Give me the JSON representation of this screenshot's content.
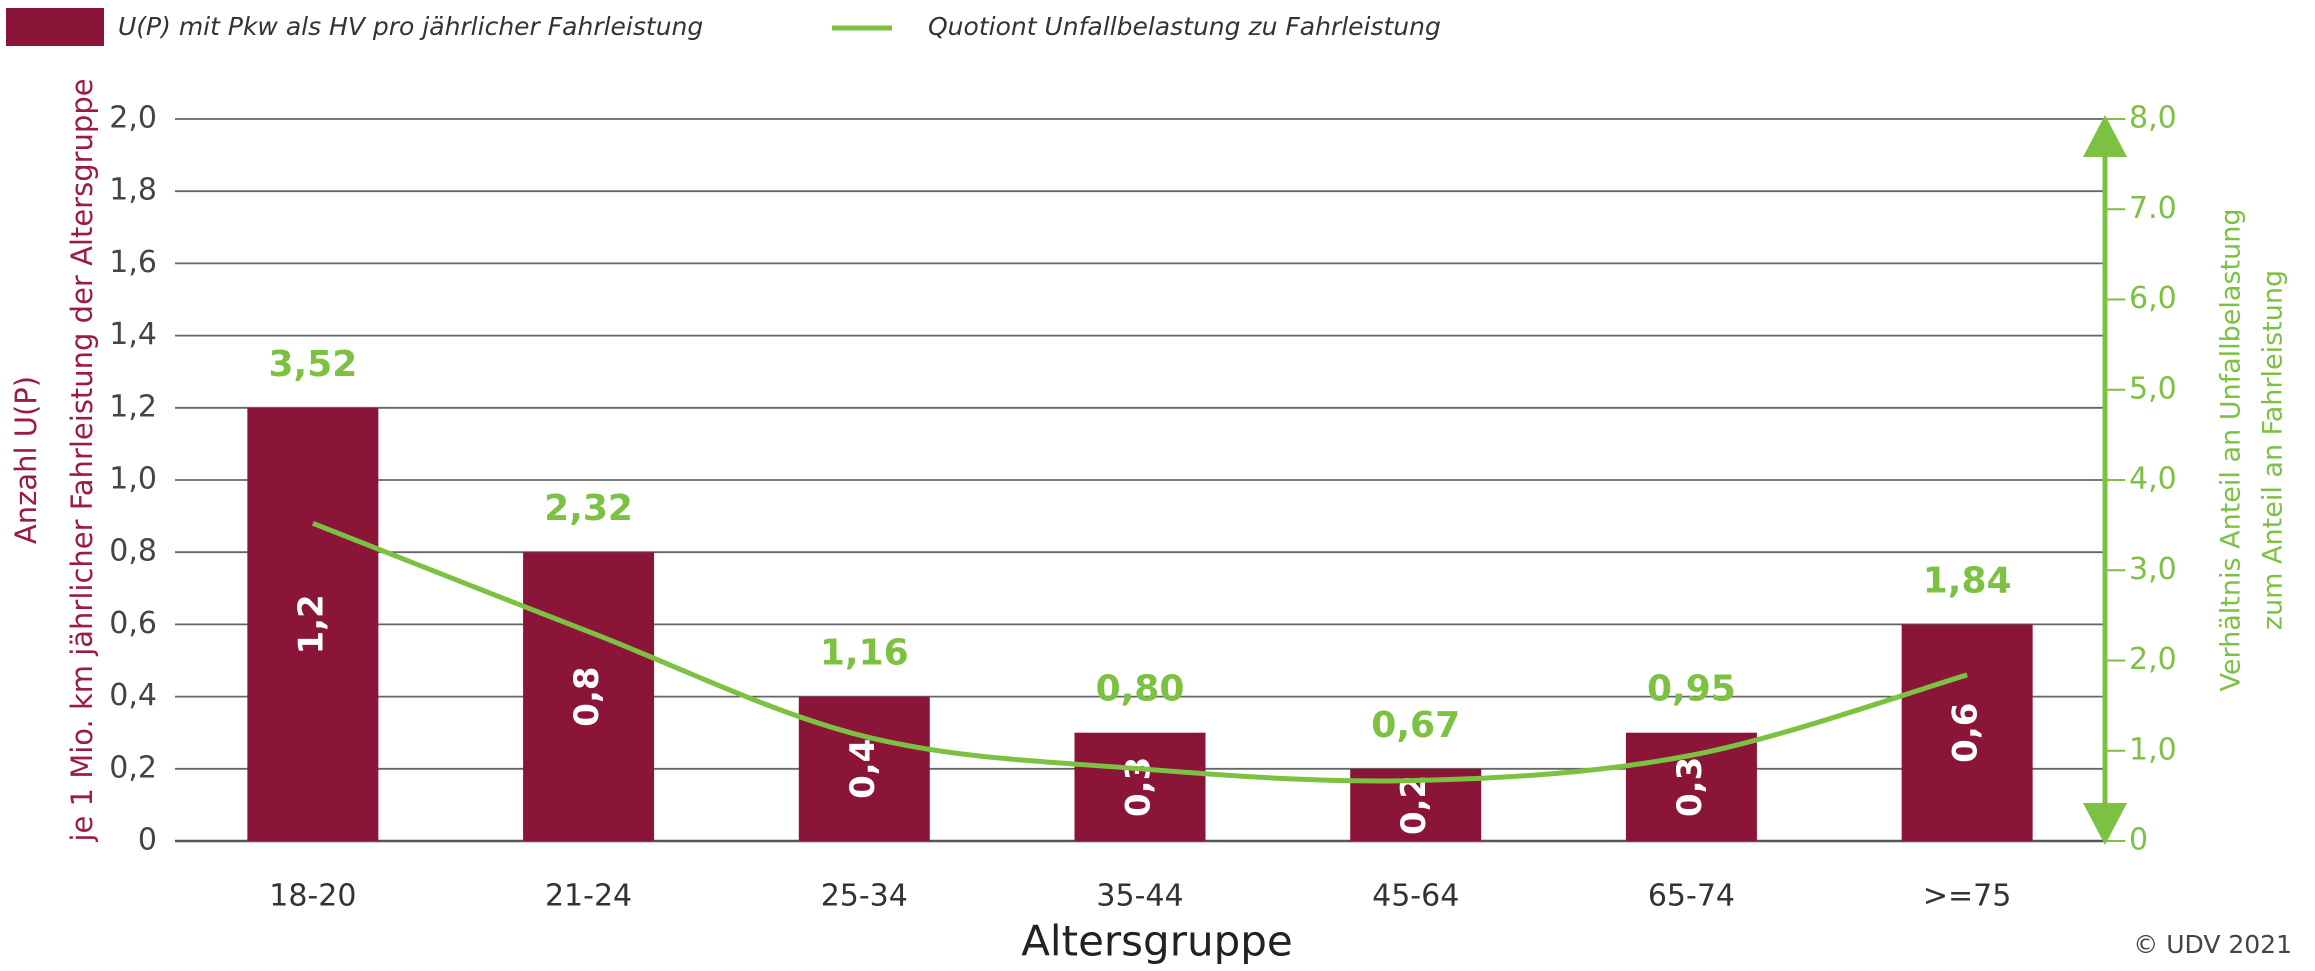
{
  "chart_data": {
    "type": "bar",
    "categories": [
      "18-20",
      "21-24",
      "25-34",
      "35-44",
      "45-64",
      "65-74",
      ">=75"
    ],
    "series": [
      {
        "name": "U(P) mit Pkw als HV pro jährlicher Fahrleistung",
        "type": "bar",
        "color": "#8a1538",
        "values": [
          1.2,
          0.8,
          0.4,
          0.3,
          0.2,
          0.3,
          0.6
        ],
        "value_labels": [
          "1,2",
          "0,8",
          "0,4",
          "0,3",
          "0,2",
          "0,3",
          "0,6"
        ]
      },
      {
        "name": "Quotiont Unfallbelastung zu Fahrleistung",
        "type": "line",
        "axis": "y2",
        "color": "#7cc142",
        "values": [
          3.52,
          2.32,
          1.16,
          0.8,
          0.67,
          0.95,
          1.84
        ],
        "value_labels": [
          "3,52",
          "2,32",
          "1,16",
          "0,80",
          "0,67",
          "0,95",
          "1,84"
        ]
      }
    ],
    "xlabel": "Altersgruppe",
    "ylabel": [
      "Anzahl U(P)",
      "je 1 Mio. km jährlicher Fahrleistung der Altersgruppe"
    ],
    "y2label": [
      "Verhältnis Anteil an Unfallbelastung",
      "zum Anteil an Fahrleistung"
    ],
    "ylim": [
      0,
      2.0
    ],
    "yticks": [
      0,
      {
        "value": 0.2,
        "label": "0,2"
      },
      {
        "value": 0.4,
        "label": "0,4"
      },
      {
        "value": 0.6,
        "label": "0,6"
      },
      {
        "value": 0.8,
        "label": "0,8"
      },
      {
        "value": 1.0,
        "label": "1,0"
      },
      {
        "value": 1.2,
        "label": "1,2"
      },
      {
        "value": 1.4,
        "label": "1,4"
      },
      {
        "value": 1.6,
        "label": "1,6"
      },
      {
        "value": 1.8,
        "label": "1,8"
      },
      {
        "value": 2.0,
        "label": "2,0"
      }
    ],
    "y2lim": [
      0,
      8.0
    ],
    "y2ticks": [
      0,
      {
        "value": 1,
        "label": "1,0"
      },
      {
        "value": 2,
        "label": "2,0"
      },
      {
        "value": 3,
        "label": "3,0"
      },
      {
        "value": 4,
        "label": "4,0"
      },
      {
        "value": 5,
        "label": "5,0"
      },
      {
        "value": 6,
        "label": "6,0"
      },
      {
        "value": 7,
        "label": "7.0"
      },
      {
        "value": 8,
        "label": "8,0"
      }
    ],
    "grid": true,
    "y_axis_color": "#9b1b45",
    "y2_axis_color": "#7cc142",
    "source": "© UDV 2021"
  }
}
